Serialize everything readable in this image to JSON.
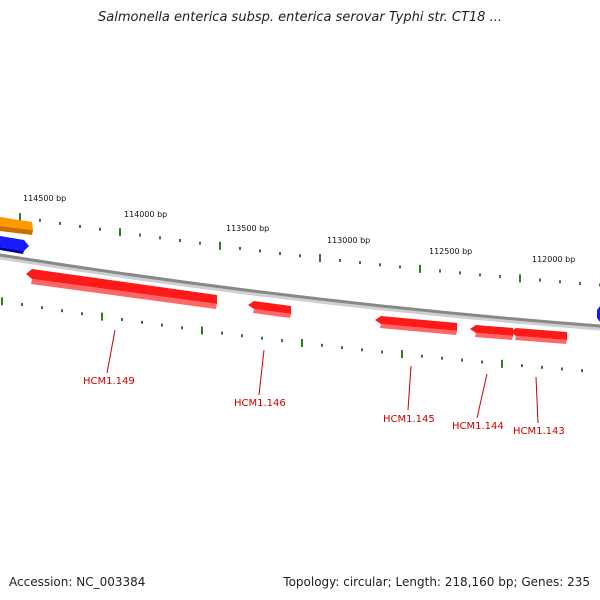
{
  "title": "Salmonella enterica subsp. enterica serovar Typhi str. CT18 ...",
  "footer": {
    "accession": "Accession: NC_003384",
    "summary": "Topology: circular; Length: 218,160 bp; Genes: 235"
  },
  "colors": {
    "backbone": "#888888",
    "tick": "#2e7d1e",
    "gene_red": "#ff1a1a",
    "gene_red_dark": "#b30000",
    "gene_blue": "#1a1aff",
    "gene_orange": "#ff9900",
    "label": "#cc0000"
  },
  "position_labels": [
    "114500 bp",
    "114000 bp",
    "113500 bp",
    "113000 bp",
    "112500 bp",
    "112000 bp"
  ],
  "genes": [
    {
      "name": "HCM1.149"
    },
    {
      "name": "HCM1.146"
    },
    {
      "name": "HCM1.145"
    },
    {
      "name": "HCM1.144"
    },
    {
      "name": "HCM1.143"
    }
  ]
}
